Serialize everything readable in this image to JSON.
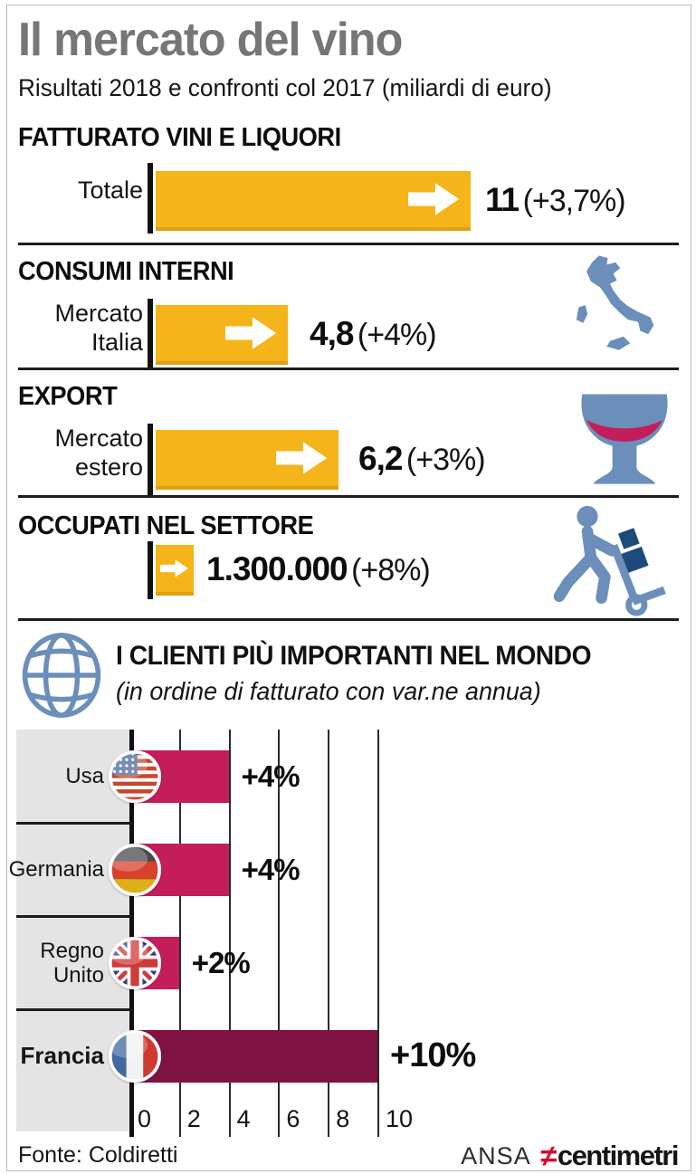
{
  "header": {
    "title": "Il mercato del vino",
    "subtitle": "Risultati 2018 e confronti col 2017 (miliardi di euro)"
  },
  "fatturato": {
    "heading": "FATTURATO VINI E LIQUORI",
    "label": "Totale",
    "value": "11",
    "change": "(+3,7%)"
  },
  "consumi": {
    "heading": "CONSUMI INTERNI",
    "label1": "Mercato",
    "label2": "Italia",
    "value": "4,8",
    "change": "(+4%)"
  },
  "export": {
    "heading": "EXPORT",
    "label1": "Mercato",
    "label2": "estero",
    "value": "6,2",
    "change": "(+3%)"
  },
  "occupati": {
    "heading": "OCCUPATI NEL SETTORE",
    "value": "1.300.000",
    "change": "(+8%)"
  },
  "clienti": {
    "heading": "I CLIENTI PIÙ IMPORTANTI NEL MONDO",
    "subtitle": "(in ordine di fatturato con var.ne annua)"
  },
  "chart_data": {
    "type": "bar",
    "orientation": "horizontal",
    "title": "I CLIENTI PIÙ IMPORTANTI NEL MONDO",
    "categories": [
      "Usa",
      "Germania",
      "Regno Unito",
      "Francia"
    ],
    "values": [
      4,
      4,
      2,
      10
    ],
    "labels": [
      "+4%",
      "+4%",
      "+2%",
      "+10%"
    ],
    "flags": [
      "usa",
      "germany",
      "uk",
      "france"
    ],
    "emphasis": [
      false,
      false,
      false,
      true
    ],
    "xlim": [
      0,
      10
    ],
    "xticks": [
      0,
      2,
      4,
      6,
      8,
      10
    ],
    "grid": true,
    "legend": "none"
  },
  "footer": {
    "source": "Fonte: Coldiretti",
    "brand_ansa": "ANSA",
    "brand_symbol": "≠",
    "brand_centimetri": "centimetri"
  },
  "colors": {
    "yellow": "#F4B41A",
    "crimson": "#C41E5A",
    "maroon": "#7E1240",
    "blue": "#6B8FBA",
    "blue_dark": "#1D4A7A",
    "label_bg": "#E4E4E4",
    "title_gray": "#767676",
    "logo_red": "#D40F2E"
  }
}
